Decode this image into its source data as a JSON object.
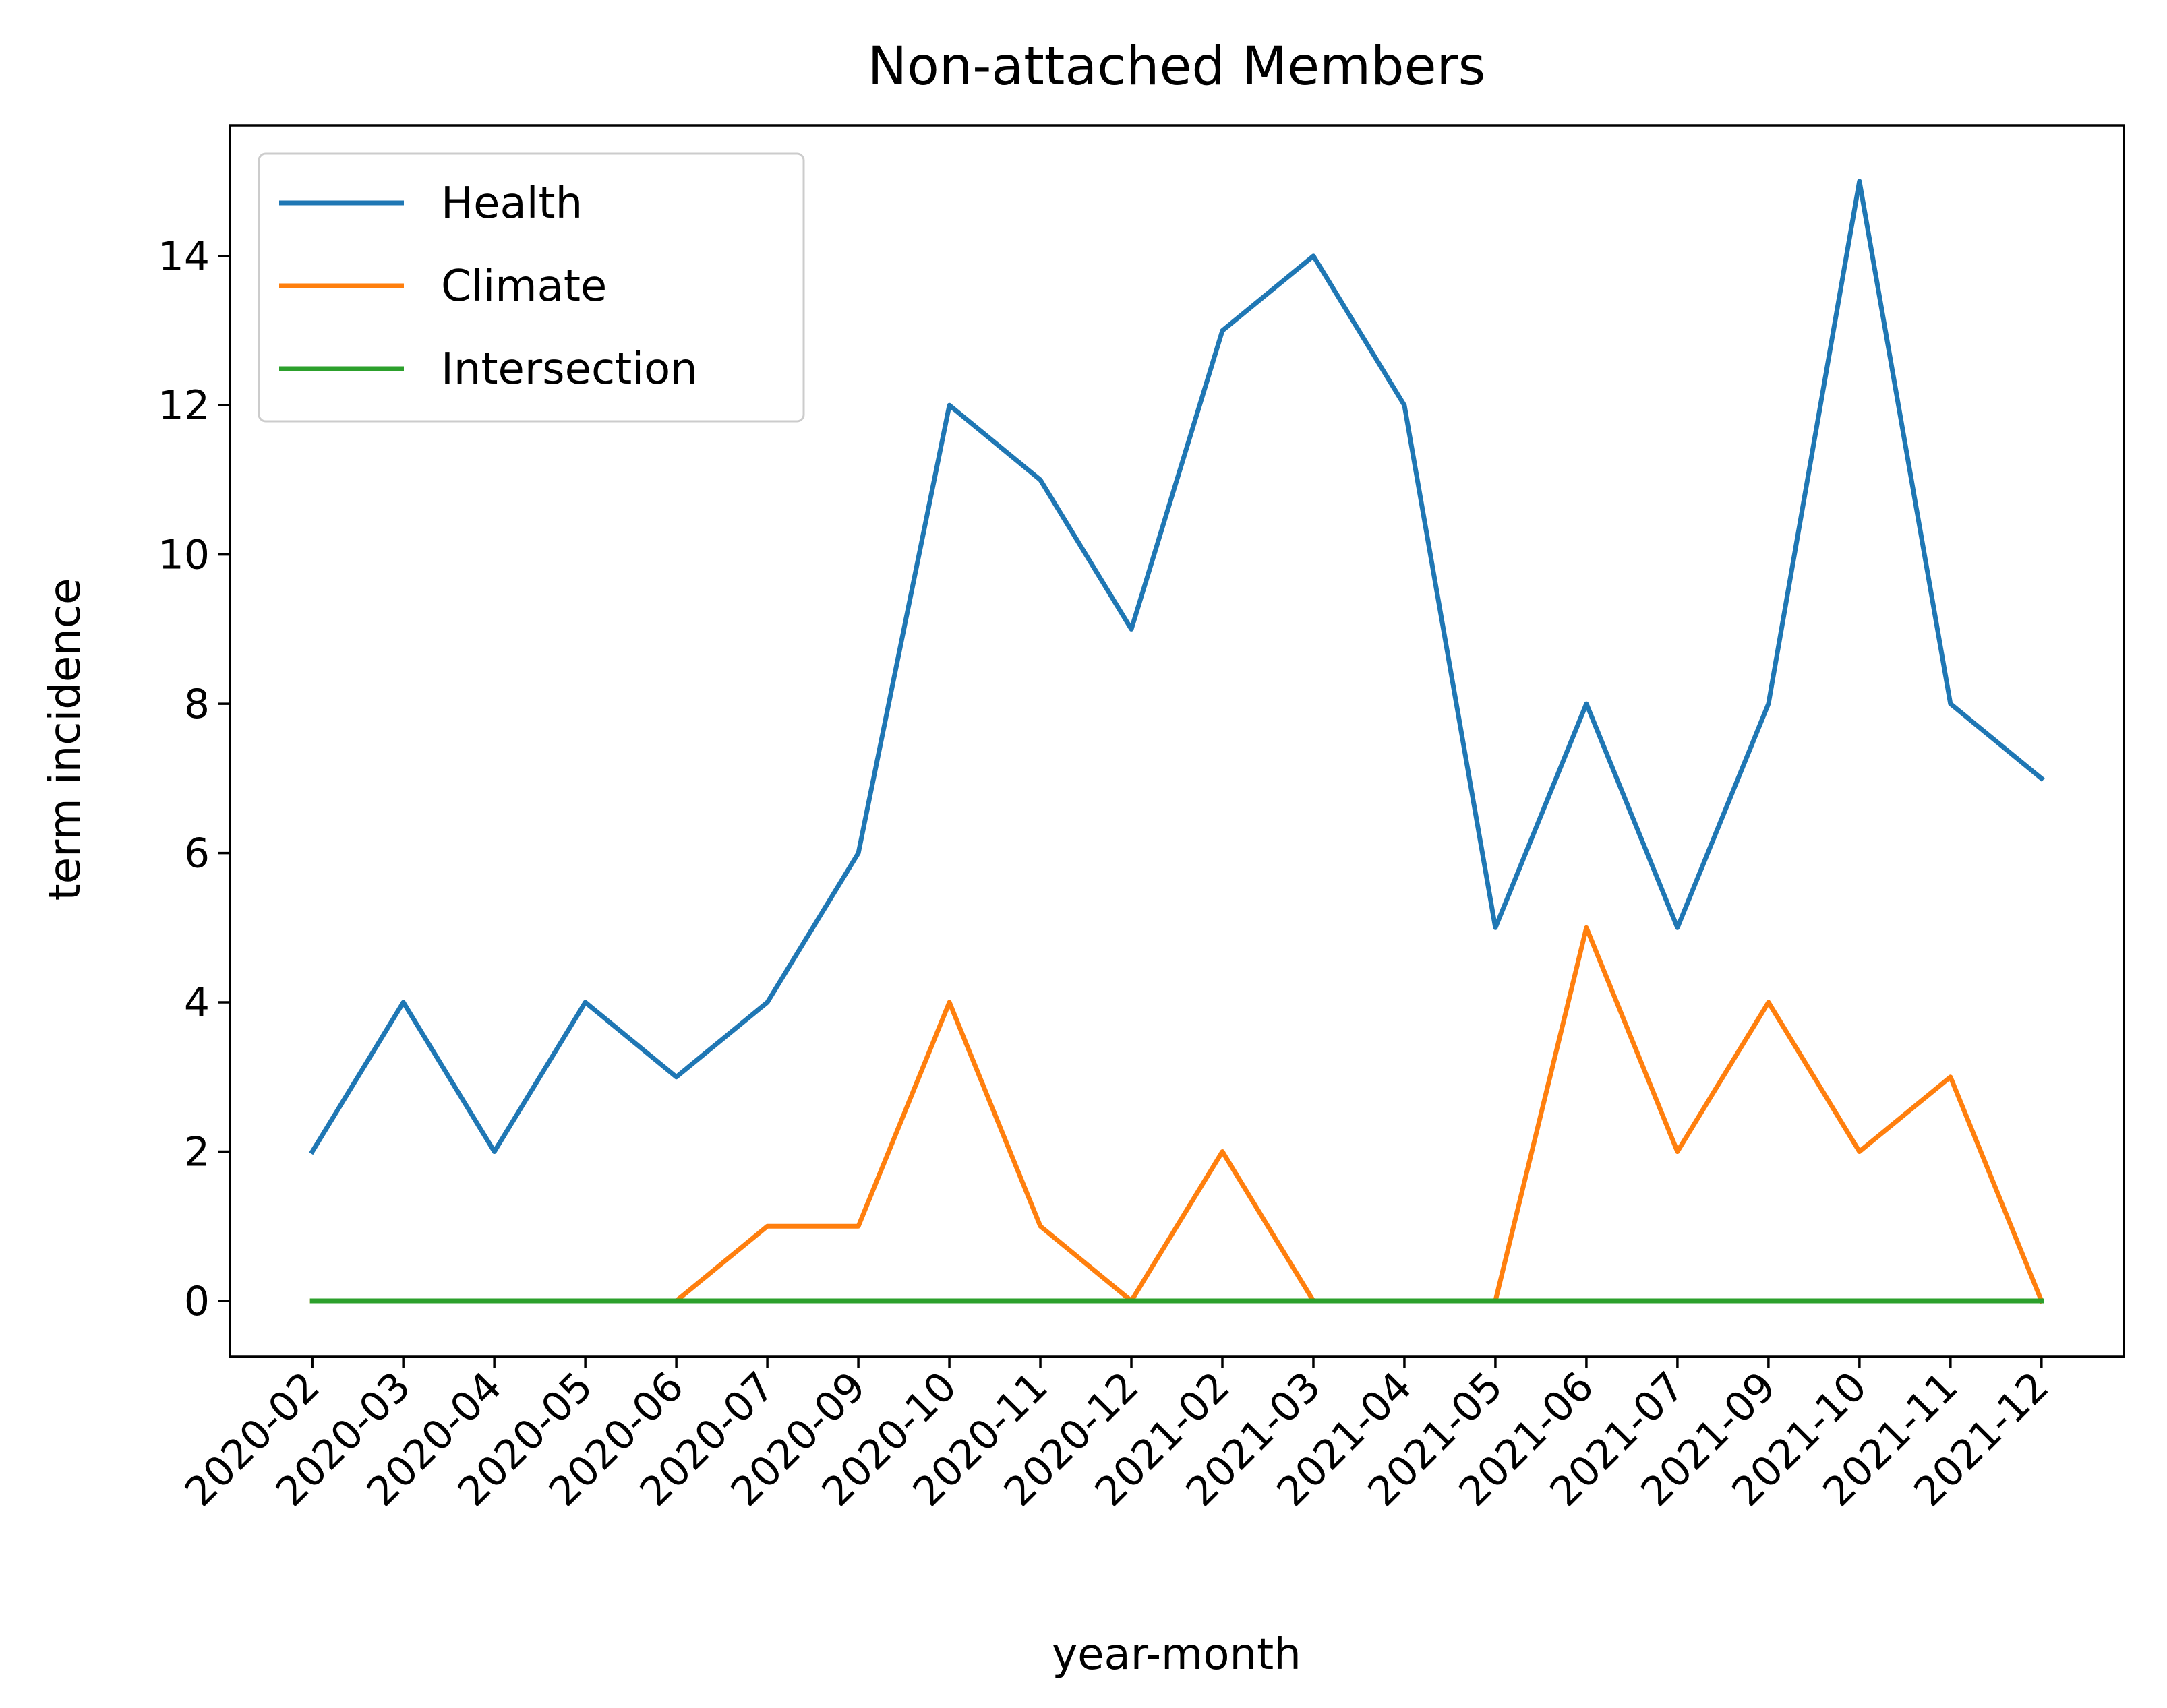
{
  "chart_data": {
    "type": "line",
    "title": "Non-attached Members",
    "xlabel": "year-month",
    "ylabel": "term incidence",
    "categories": [
      "2020-02",
      "2020-03",
      "2020-04",
      "2020-05",
      "2020-06",
      "2020-07",
      "2020-09",
      "2020-10",
      "2020-11",
      "2020-12",
      "2021-02",
      "2021-03",
      "2021-04",
      "2021-05",
      "2021-06",
      "2021-07",
      "2021-09",
      "2021-10",
      "2021-11",
      "2021-12"
    ],
    "yticks": [
      0,
      2,
      4,
      6,
      8,
      10,
      12,
      14
    ],
    "ylim": [
      -0.75,
      15.75
    ],
    "grid": false,
    "legend_position": "top-left",
    "series": [
      {
        "name": "Health",
        "color": "#1f77b4",
        "values": [
          2,
          4,
          2,
          4,
          3,
          4,
          6,
          12,
          11,
          9,
          13,
          14,
          12,
          5,
          8,
          5,
          8,
          15,
          8,
          7
        ]
      },
      {
        "name": "Climate",
        "color": "#ff7f0e",
        "values": [
          0,
          0,
          0,
          0,
          0,
          1,
          1,
          4,
          1,
          0,
          2,
          0,
          0,
          0,
          5,
          2,
          4,
          2,
          3,
          0
        ]
      },
      {
        "name": "Intersection",
        "color": "#2ca02c",
        "values": [
          0,
          0,
          0,
          0,
          0,
          0,
          0,
          0,
          0,
          0,
          0,
          0,
          0,
          0,
          0,
          0,
          0,
          0,
          0,
          0
        ]
      }
    ]
  }
}
